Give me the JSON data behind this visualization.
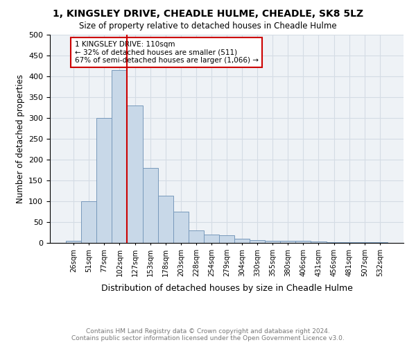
{
  "title": "1, KINGSLEY DRIVE, CHEADLE HULME, CHEADLE, SK8 5LZ",
  "subtitle": "Size of property relative to detached houses in Cheadle Hulme",
  "xlabel": "Distribution of detached houses by size in Cheadle Hulme",
  "ylabel": "Number of detached properties",
  "bar_color": "#c8d8e8",
  "bar_edge_color": "#7799bb",
  "categories": [
    "26sqm",
    "51sqm",
    "77sqm",
    "102sqm",
    "127sqm",
    "153sqm",
    "178sqm",
    "203sqm",
    "228sqm",
    "254sqm",
    "279sqm",
    "304sqm",
    "330sqm",
    "355sqm",
    "380sqm",
    "406sqm",
    "431sqm",
    "456sqm",
    "481sqm",
    "507sqm",
    "532sqm"
  ],
  "values": [
    5,
    100,
    300,
    415,
    330,
    180,
    113,
    75,
    30,
    20,
    18,
    10,
    7,
    5,
    5,
    5,
    3,
    2,
    2,
    2,
    2
  ],
  "ylim": [
    0,
    500
  ],
  "yticks": [
    0,
    50,
    100,
    150,
    200,
    250,
    300,
    350,
    400,
    450,
    500
  ],
  "property_line_x": 3.5,
  "annotation_line1": "1 KINGSLEY DRIVE: 110sqm",
  "annotation_line2": "← 32% of detached houses are smaller (511)",
  "annotation_line3": "67% of semi-detached houses are larger (1,066) →",
  "annotation_box_color": "#ffffff",
  "annotation_box_edge_color": "#cc0000",
  "red_line_color": "#cc0000",
  "footer_line1": "Contains HM Land Registry data © Crown copyright and database right 2024.",
  "footer_line2": "Contains public sector information licensed under the Open Government Licence v3.0.",
  "grid_color": "#d4dce4",
  "background_color": "#eef2f6"
}
